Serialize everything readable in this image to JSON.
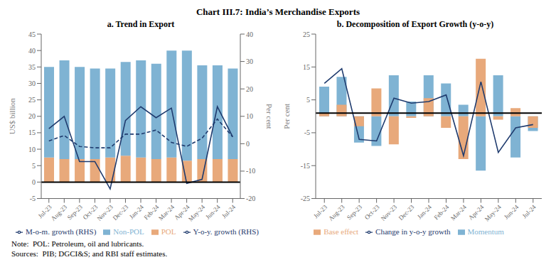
{
  "title": "Chart III.7: India’s Merchandise Exports",
  "annotations": [
    "Note:  POL: Petroleum, oil and lubricants.",
    "Sources:  PIB; DGCI&S; and RBI staff estimates."
  ],
  "chart_data": [
    {
      "type": "bar",
      "title": "a. Trend in Export",
      "categories": [
        "Jul-23",
        "Aug-23",
        "Sep-23",
        "Oct-23",
        "Nov-23",
        "Dec-23",
        "Jan-24",
        "Feb-24",
        "Mar-24",
        "Apr-24",
        "May-24",
        "Jun-24",
        "Jul-24"
      ],
      "ylabel": "US$ billion",
      "y2label": "Per cent",
      "ylim": [
        -5,
        45
      ],
      "yticks": [
        -5,
        0,
        5,
        10,
        15,
        20,
        25,
        30,
        35,
        40,
        45
      ],
      "y2lim": [
        -20,
        40
      ],
      "y2ticks": [
        -20,
        -10,
        0,
        10,
        20,
        30,
        40
      ],
      "stacked": true,
      "grid": false,
      "legend": "bottom",
      "reference_line": 0,
      "series": [
        {
          "name": "POL",
          "type": "bar",
          "color": "#E8A97B",
          "values": [
            7.5,
            7.0,
            7.0,
            7.0,
            7.5,
            8.0,
            7.5,
            7.0,
            7.5,
            6.5,
            7.0,
            7.0,
            7.0
          ]
        },
        {
          "name": "Non-POL",
          "type": "bar",
          "color": "#7FB3D3",
          "values": [
            27.5,
            30.0,
            28.0,
            27.5,
            27.0,
            28.5,
            29.5,
            29.0,
            32.5,
            33.5,
            28.5,
            28.5,
            27.5
          ]
        },
        {
          "name": "Y-o-y. growth (RHS)",
          "type": "line",
          "axis": "y2",
          "color": "#1F3B6E",
          "line_style": "dashed",
          "values": [
            1.0,
            3.0,
            -1.0,
            -1.5,
            -1.5,
            3.5,
            3.5,
            5.0,
            0.5,
            -1.0,
            2.0,
            9.0,
            2.5
          ]
        },
        {
          "name": "M-o-m. growth (RHS)",
          "type": "line",
          "axis": "y2",
          "color": "#1F3B6E",
          "line_style": "solid",
          "values": [
            5.5,
            10.0,
            -6.5,
            -6.5,
            -16.5,
            8.5,
            13.5,
            9.5,
            13.0,
            -14.5,
            -13.0,
            13.5,
            2.5
          ]
        }
      ]
    },
    {
      "type": "bar",
      "title": "b. Decomposition of Export Growth (y-o-y)",
      "categories": [
        "Jul-23",
        "Aug-23",
        "Sep-23",
        "Oct-23",
        "Nov-23",
        "Dec-23",
        "Jan-24",
        "Feb-24",
        "Mar-24",
        "Apr-24",
        "May-24",
        "Jun-24",
        "Jul-24"
      ],
      "ylabel": "Per cent",
      "ylim": [
        -25,
        25
      ],
      "yticks": [
        -25,
        -15,
        -5,
        5,
        15,
        25
      ],
      "stacked": false,
      "grid": false,
      "legend": "bottom",
      "reference_line": 1.0,
      "series": [
        {
          "name": "Momentum",
          "type": "bar",
          "color": "#7FB3D3",
          "values": [
            9.0,
            12.0,
            -8.0,
            -9.0,
            12.5,
            4.5,
            12.5,
            10.0,
            3.5,
            -16.5,
            12.5,
            -12.5,
            -4.5
          ]
        },
        {
          "name": "Base effect",
          "type": "bar",
          "color": "#E8A97B",
          "values": [
            1.0,
            3.5,
            -3.0,
            8.5,
            -8.5,
            -0.5,
            5.5,
            -3.5,
            -13.0,
            17.5,
            -1.0,
            2.5,
            -3.5
          ]
        },
        {
          "name": "Change in y-o-y growth",
          "type": "line",
          "color": "#1F3B6E",
          "line_style": "solid",
          "values": [
            10.0,
            14.5,
            -7.0,
            -7.5,
            5.5,
            4.0,
            4.5,
            6.5,
            -12.0,
            10.5,
            -11.0,
            -3.5,
            -2.5
          ]
        }
      ]
    }
  ]
}
